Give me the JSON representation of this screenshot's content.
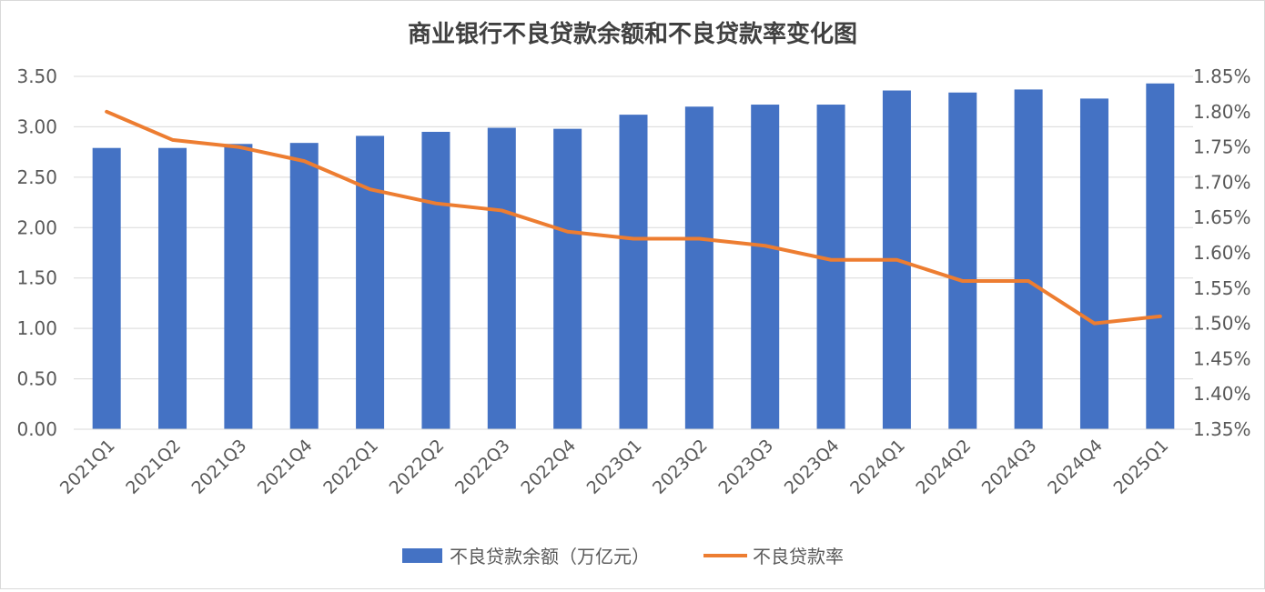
{
  "chart_data": {
    "type": "bar",
    "title": "商业银行不良贷款余额和不良贷款率变化图",
    "categories": [
      "2021Q1",
      "2021Q2",
      "2021Q3",
      "2021Q4",
      "2022Q1",
      "2022Q2",
      "2022Q3",
      "2022Q4",
      "2023Q1",
      "2023Q2",
      "2023Q3",
      "2023Q4",
      "2024Q1",
      "2024Q2",
      "2024Q3",
      "2024Q4",
      "2025Q1"
    ],
    "series": [
      {
        "name": "不良贷款余额（万亿元）",
        "type": "bar",
        "axis": "left",
        "color": "#4472C4",
        "values": [
          2.79,
          2.79,
          2.83,
          2.84,
          2.91,
          2.95,
          2.99,
          2.98,
          3.12,
          3.2,
          3.22,
          3.22,
          3.36,
          3.34,
          3.37,
          3.28,
          3.43
        ]
      },
      {
        "name": "不良贷款率",
        "type": "line",
        "axis": "right",
        "color": "#ED7D31",
        "values": [
          1.8,
          1.76,
          1.75,
          1.73,
          1.69,
          1.67,
          1.66,
          1.63,
          1.62,
          1.62,
          1.61,
          1.59,
          1.59,
          1.56,
          1.56,
          1.5,
          1.51
        ]
      }
    ],
    "y_left": {
      "ylim": [
        0,
        3.5
      ],
      "ticks": [
        "0.00",
        "0.50",
        "1.00",
        "1.50",
        "2.00",
        "2.50",
        "3.00",
        "3.50"
      ]
    },
    "y_right": {
      "ylim": [
        1.35,
        1.85
      ],
      "unit": "%",
      "ticks": [
        "1.35%",
        "1.40%",
        "1.45%",
        "1.50%",
        "1.55%",
        "1.60%",
        "1.65%",
        "1.70%",
        "1.75%",
        "1.80%",
        "1.85%"
      ]
    },
    "grid": true,
    "legend_position": "bottom"
  }
}
